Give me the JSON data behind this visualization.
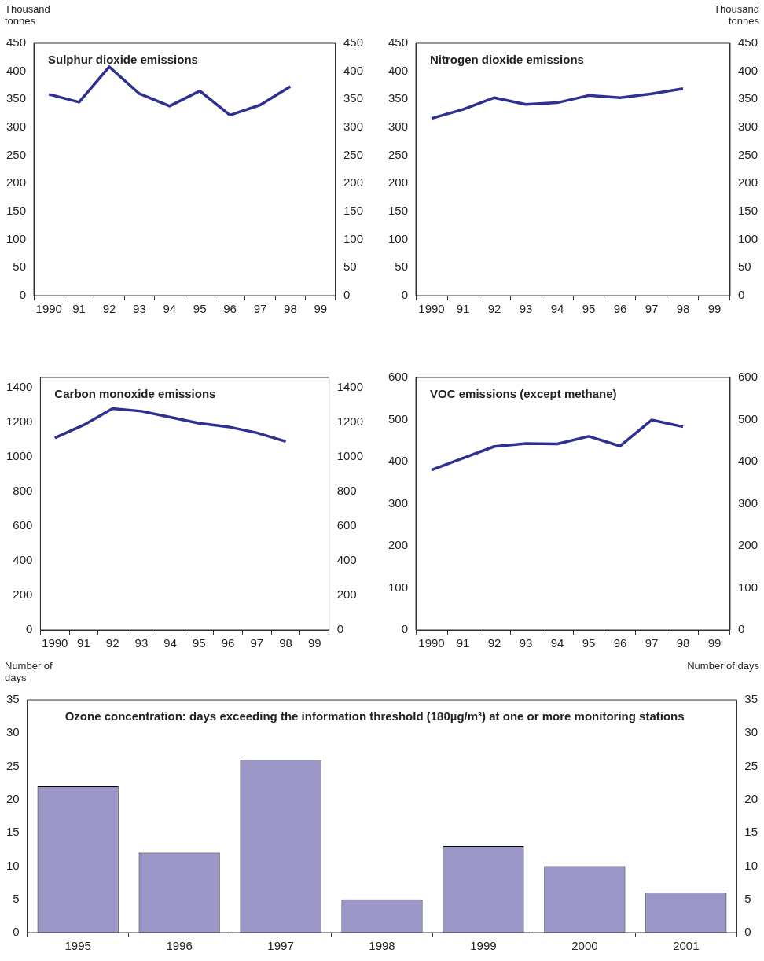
{
  "chart_data": [
    {
      "type": "line",
      "title": "Sulphur dioxide emissions",
      "ylabel": "Thousand tonnes",
      "categories": [
        "1990",
        "91",
        "92",
        "93",
        "94",
        "95",
        "96",
        "97",
        "98",
        "99"
      ],
      "values": [
        359,
        345,
        408,
        360,
        338,
        365,
        322,
        340,
        373,
        null
      ],
      "color": "#2e3192",
      "marker": "none",
      "ylim": [
        0,
        450
      ],
      "yticks": [
        0,
        50,
        100,
        150,
        200,
        250,
        300,
        350,
        400,
        450
      ],
      "y2lim": [
        0,
        450
      ],
      "y2ticks": [
        0,
        50,
        100,
        150,
        200,
        250,
        300,
        350,
        400,
        450
      ]
    },
    {
      "type": "line",
      "title": "Nitrogen dioxide emissions",
      "y2label": "Thousand tonnes",
      "categories": [
        "1990",
        "91",
        "92",
        "93",
        "94",
        "95",
        "96",
        "97",
        "98",
        "99"
      ],
      "values": [
        316,
        332,
        353,
        341,
        344,
        357,
        353,
        360,
        369,
        null
      ],
      "color": "#2e3192",
      "marker": "none",
      "ylim": [
        0,
        450
      ],
      "yticks": [
        0,
        50,
        100,
        150,
        200,
        250,
        300,
        350,
        400,
        450
      ],
      "y2lim": [
        0,
        450
      ],
      "y2ticks": [
        0,
        50,
        100,
        150,
        200,
        250,
        300,
        350,
        400,
        450
      ]
    },
    {
      "type": "line",
      "title": "Carbon monoxide emissions",
      "categories": [
        "1990",
        "91",
        "92",
        "93",
        "94",
        "95",
        "96",
        "97",
        "98",
        "99"
      ],
      "values": [
        1110,
        1185,
        1280,
        1265,
        1230,
        1195,
        1175,
        1140,
        1090,
        null
      ],
      "color": "#2e3192",
      "marker": "none",
      "ylim": [
        0,
        1460
      ],
      "yticks": [
        0,
        200,
        400,
        600,
        800,
        1000,
        1200,
        1400
      ],
      "y2lim": [
        0,
        1460
      ],
      "y2ticks": [
        0,
        200,
        400,
        600,
        800,
        1000,
        1200,
        1400
      ]
    },
    {
      "type": "line",
      "title": "VOC emissions (except methane)",
      "categories": [
        "1990",
        "91",
        "92",
        "93",
        "94",
        "95",
        "96",
        "97",
        "98",
        "99"
      ],
      "values": [
        380,
        408,
        436,
        443,
        442,
        460,
        437,
        499,
        483,
        null
      ],
      "color": "#2e3192",
      "marker": "none",
      "ylim": [
        0,
        600
      ],
      "yticks": [
        0,
        100,
        200,
        300,
        400,
        500,
        600
      ],
      "y2lim": [
        0,
        600
      ],
      "y2ticks": [
        0,
        100,
        200,
        300,
        400,
        500,
        600
      ]
    },
    {
      "type": "bar",
      "title": "Ozone concentration: days exceeding the information threshold (180µg/m³) at one or more monitoring stations",
      "ylabel": "Number of days",
      "y2label": "Number of days",
      "categories": [
        "1995",
        "1996",
        "1997",
        "1998",
        "1999",
        "2000",
        "2001"
      ],
      "values": [
        22,
        12,
        26,
        5,
        13,
        10,
        6
      ],
      "color": "#9b96c8",
      "ylim": [
        0,
        35
      ],
      "yticks": [
        0,
        5,
        10,
        15,
        20,
        25,
        30,
        35
      ],
      "y2lim": [
        0,
        35
      ],
      "y2ticks": [
        0,
        5,
        10,
        15,
        20,
        25,
        30,
        35
      ]
    }
  ]
}
